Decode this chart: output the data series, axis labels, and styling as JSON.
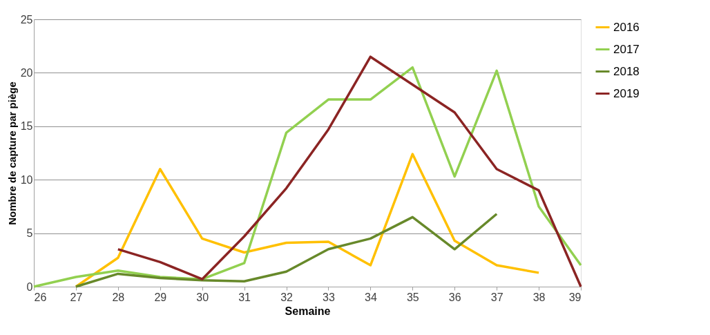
{
  "chart_data": {
    "type": "line",
    "xlabel": "Semaine",
    "ylabel": "Nombre de capture par piège",
    "x": [
      26,
      27,
      28,
      29,
      30,
      31,
      32,
      33,
      34,
      35,
      36,
      37,
      38,
      39
    ],
    "xlim": [
      26,
      39
    ],
    "xticks": [
      26,
      27,
      28,
      29,
      30,
      31,
      32,
      33,
      34,
      35,
      36,
      37,
      38,
      39
    ],
    "ylim": [
      0,
      25
    ],
    "yticks": [
      0,
      5,
      10,
      15,
      20,
      25
    ],
    "grid": "y",
    "legend": "right",
    "marker": "none",
    "line_style": "solid",
    "series": [
      {
        "name": "2016",
        "color": "#ffc000",
        "values": [
          null,
          0,
          2.7,
          11,
          4.5,
          3.2,
          4.1,
          4.2,
          2.0,
          12.4,
          4.3,
          2.0,
          1.3,
          null
        ]
      },
      {
        "name": "2017",
        "color": "#92d050",
        "values": [
          0,
          0.9,
          1.5,
          0.9,
          0.7,
          2.2,
          14.4,
          17.5,
          17.5,
          20.5,
          10.3,
          20.2,
          7.5,
          2.0
        ]
      },
      {
        "name": "2018",
        "color": "#67892a",
        "values": [
          null,
          0,
          1.2,
          0.8,
          0.6,
          0.5,
          1.4,
          3.5,
          4.5,
          6.5,
          3.5,
          6.8,
          null,
          null
        ]
      },
      {
        "name": "2019",
        "color": "#8b2423",
        "values": [
          null,
          null,
          3.5,
          2.3,
          0.7,
          4.7,
          9.2,
          14.7,
          21.5,
          18.9,
          16.3,
          11.0,
          9.0,
          0
        ]
      }
    ]
  }
}
